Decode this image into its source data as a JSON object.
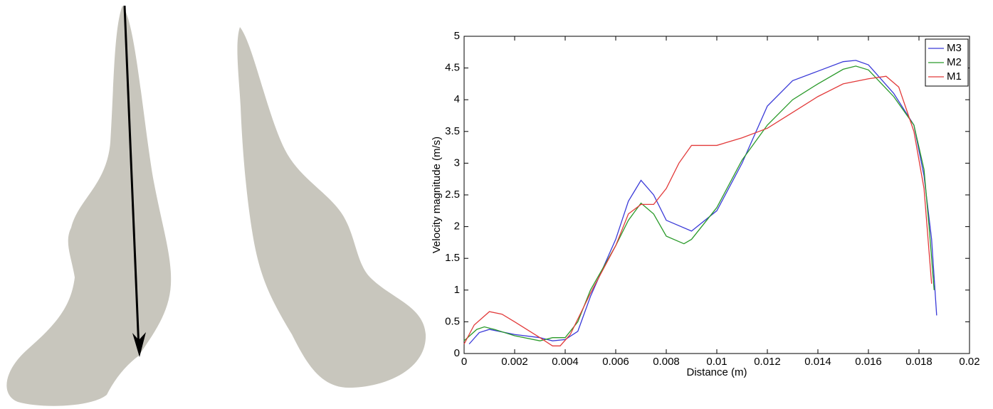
{
  "chart_data": {
    "type": "line",
    "xlabel": "Distance (m)",
    "ylabel": "Velocity magnitude (m/s)",
    "xlim": [
      0,
      0.02
    ],
    "ylim": [
      0,
      5
    ],
    "xticks": [
      0,
      0.002,
      0.004,
      0.006,
      0.008,
      0.01,
      0.012,
      0.014,
      0.016,
      0.018,
      0.02
    ],
    "yticks": [
      0,
      0.5,
      1,
      1.5,
      2,
      2.5,
      3,
      3.5,
      4,
      4.5,
      5
    ],
    "legend": "top-right",
    "series": [
      {
        "name": "M3",
        "color": "#3a3ad8",
        "x": [
          0.0002,
          0.0006,
          0.001,
          0.002,
          0.003,
          0.0035,
          0.004,
          0.0045,
          0.005,
          0.006,
          0.0065,
          0.007,
          0.0075,
          0.008,
          0.009,
          0.01,
          0.011,
          0.012,
          0.013,
          0.014,
          0.015,
          0.0155,
          0.016,
          0.017,
          0.0178,
          0.0182,
          0.0185,
          0.0187
        ],
        "values": [
          0.15,
          0.33,
          0.38,
          0.3,
          0.25,
          0.2,
          0.22,
          0.35,
          0.9,
          1.8,
          2.4,
          2.73,
          2.5,
          2.1,
          1.93,
          2.25,
          3.0,
          3.9,
          4.3,
          4.45,
          4.6,
          4.62,
          4.55,
          4.1,
          3.6,
          2.8,
          1.8,
          0.6
        ]
      },
      {
        "name": "M2",
        "color": "#2a9a2a",
        "x": [
          0,
          0.0005,
          0.0008,
          0.0012,
          0.002,
          0.003,
          0.0035,
          0.004,
          0.0045,
          0.005,
          0.006,
          0.0065,
          0.007,
          0.0075,
          0.008,
          0.0087,
          0.009,
          0.01,
          0.011,
          0.012,
          0.013,
          0.014,
          0.015,
          0.0155,
          0.016,
          0.017,
          0.0178,
          0.0182,
          0.0184,
          0.0186
        ],
        "values": [
          0.2,
          0.38,
          0.42,
          0.38,
          0.28,
          0.2,
          0.25,
          0.25,
          0.5,
          1.0,
          1.7,
          2.1,
          2.37,
          2.2,
          1.85,
          1.73,
          1.8,
          2.3,
          3.05,
          3.6,
          4.0,
          4.25,
          4.48,
          4.53,
          4.47,
          4.05,
          3.6,
          2.9,
          2.0,
          1.0
        ]
      },
      {
        "name": "M1",
        "color": "#e23a3a",
        "x": [
          0,
          0.0004,
          0.001,
          0.0015,
          0.002,
          0.003,
          0.0035,
          0.0038,
          0.0042,
          0.005,
          0.006,
          0.0065,
          0.007,
          0.0075,
          0.008,
          0.0085,
          0.009,
          0.01,
          0.011,
          0.012,
          0.013,
          0.014,
          0.015,
          0.016,
          0.0167,
          0.0172,
          0.0178,
          0.0182,
          0.0185
        ],
        "values": [
          0.15,
          0.45,
          0.66,
          0.62,
          0.5,
          0.25,
          0.12,
          0.12,
          0.3,
          0.95,
          1.7,
          2.2,
          2.35,
          2.35,
          2.6,
          3.0,
          3.28,
          3.28,
          3.4,
          3.55,
          3.8,
          4.05,
          4.25,
          4.33,
          4.37,
          4.2,
          3.5,
          2.6,
          1.1
        ]
      }
    ]
  }
}
